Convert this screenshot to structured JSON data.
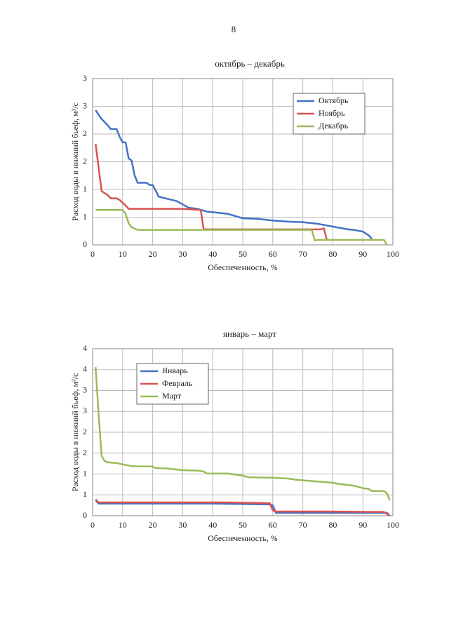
{
  "page_number": "8",
  "chart_data": [
    {
      "type": "line",
      "title": "октябрь – декабрь",
      "xlabel": "Обеспеченность, %",
      "ylabel": "Расход воды в нижний бьеф, м³/с",
      "xlim": [
        0,
        100
      ],
      "xticks": [
        0,
        10,
        20,
        30,
        40,
        50,
        60,
        70,
        80,
        90,
        100
      ],
      "ylim": [
        0,
        3
      ],
      "yticks": [
        0,
        {
          "value": 0.5,
          "label": "1"
        },
        1,
        {
          "value": 1.5,
          "label": "2"
        },
        2,
        {
          "value": 2.5,
          "label": "3"
        },
        3
      ],
      "grid": true,
      "legend": "upper right",
      "series": [
        {
          "name": "Октябрь",
          "color": "#4472c4",
          "x": [
            1,
            3,
            5,
            6,
            8,
            9,
            10,
            11,
            12,
            13,
            14,
            15,
            18,
            19,
            20,
            21,
            22,
            25,
            28,
            30,
            32,
            35,
            38,
            40,
            45,
            50,
            55,
            60,
            65,
            70,
            75,
            80,
            85,
            87,
            90,
            92,
            93
          ],
          "values": [
            2.43,
            2.27,
            2.16,
            2.09,
            2.09,
            1.95,
            1.85,
            1.85,
            1.56,
            1.52,
            1.25,
            1.12,
            1.12,
            1.08,
            1.08,
            0.98,
            0.87,
            0.83,
            0.79,
            0.73,
            0.67,
            0.65,
            0.6,
            0.59,
            0.56,
            0.48,
            0.47,
            0.44,
            0.42,
            0.41,
            0.38,
            0.33,
            0.28,
            0.27,
            0.24,
            0.17,
            0.11
          ]
        },
        {
          "name": "Ноябрь",
          "color": "#d9534f",
          "x": [
            1,
            3,
            5,
            6,
            8,
            9,
            11,
            12,
            20,
            30,
            36,
            37,
            38,
            50,
            60,
            70,
            76,
            77,
            78,
            79
          ],
          "values": [
            1.82,
            0.97,
            0.9,
            0.84,
            0.84,
            0.81,
            0.71,
            0.65,
            0.65,
            0.65,
            0.63,
            0.28,
            0.28,
            0.28,
            0.28,
            0.28,
            0.28,
            0.3,
            0.09,
            0.09
          ]
        },
        {
          "name": "Декабрь",
          "color": "#9bbb59",
          "x": [
            1,
            5,
            10,
            11,
            12,
            13,
            15,
            30,
            50,
            73,
            74,
            75,
            90,
            97,
            98
          ],
          "values": [
            0.63,
            0.63,
            0.63,
            0.56,
            0.39,
            0.32,
            0.27,
            0.27,
            0.27,
            0.27,
            0.08,
            0.09,
            0.09,
            0.09,
            0
          ]
        }
      ]
    },
    {
      "type": "line",
      "title": "январь – март",
      "xlabel": "Обеспеченность, %",
      "ylabel": "Расход воды в нижний бьеф, м³/с",
      "xlim": [
        0,
        100
      ],
      "xticks": [
        0,
        10,
        20,
        30,
        40,
        50,
        60,
        70,
        80,
        90,
        100
      ],
      "ylim": [
        0,
        4
      ],
      "yticks": [
        0,
        {
          "value": 0.5,
          "label": "1"
        },
        1,
        {
          "value": 1.5,
          "label": "2"
        },
        2,
        {
          "value": 2.5,
          "label": "3"
        },
        3,
        {
          "value": 3.5,
          "label": "4"
        },
        4
      ],
      "grid": true,
      "legend": "upper left",
      "series": [
        {
          "name": "Январь",
          "color": "#4472c4",
          "x": [
            1,
            2,
            20,
            40,
            59,
            60,
            61,
            80,
            98,
            99
          ],
          "values": [
            0.37,
            0.29,
            0.29,
            0.29,
            0.27,
            0.25,
            0.07,
            0.07,
            0.07,
            0
          ]
        },
        {
          "name": "Февраль",
          "color": "#d9534f",
          "x": [
            1,
            2,
            20,
            45,
            59,
            60,
            61,
            80,
            97,
            99
          ],
          "values": [
            0.39,
            0.32,
            0.32,
            0.32,
            0.3,
            0.13,
            0.1,
            0.1,
            0.09,
            0
          ]
        },
        {
          "name": "Март",
          "color": "#9bbb59",
          "x": [
            1,
            2,
            3,
            4,
            5,
            8,
            10,
            13,
            15,
            20,
            21,
            25,
            30,
            35,
            37,
            38,
            45,
            50,
            52,
            60,
            65,
            68,
            75,
            80,
            82,
            87,
            90,
            92,
            93,
            97,
            98,
            99
          ],
          "values": [
            3.56,
            2.44,
            1.43,
            1.31,
            1.28,
            1.26,
            1.23,
            1.19,
            1.18,
            1.18,
            1.14,
            1.13,
            1.09,
            1.08,
            1.06,
            1.01,
            1.01,
            0.96,
            0.92,
            0.91,
            0.89,
            0.86,
            0.82,
            0.79,
            0.76,
            0.72,
            0.66,
            0.64,
            0.59,
            0.59,
            0.54,
            0.37
          ]
        }
      ]
    }
  ]
}
